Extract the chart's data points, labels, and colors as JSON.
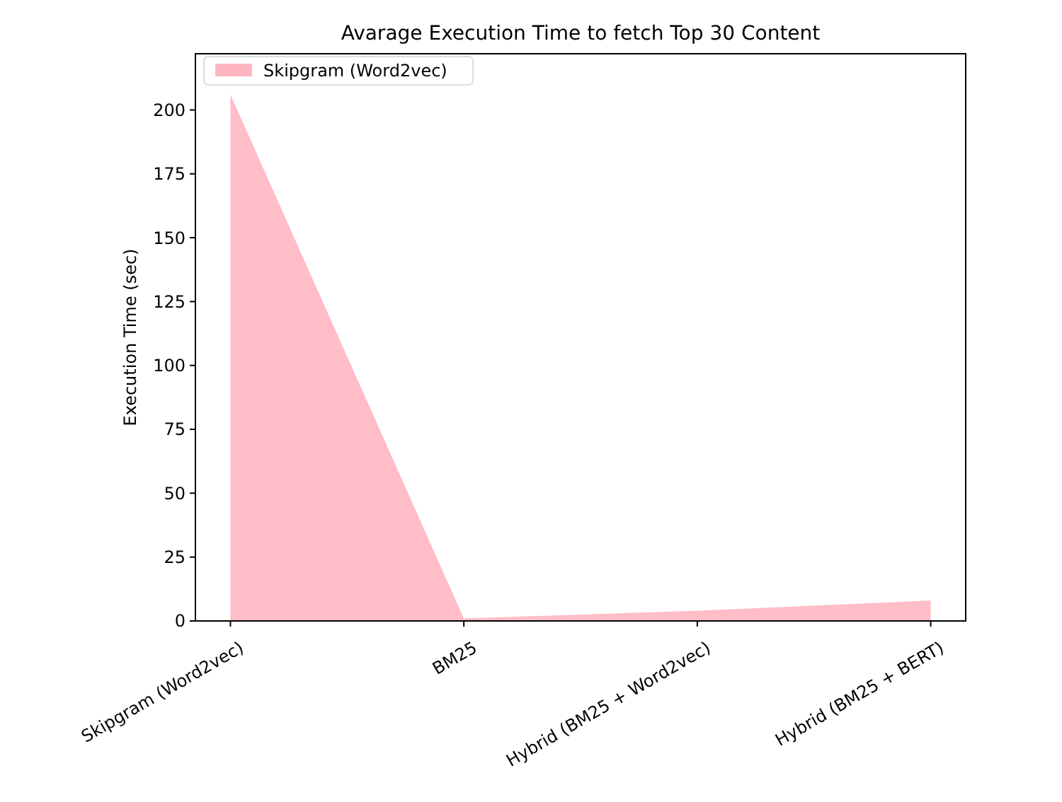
{
  "chart_data": {
    "type": "area",
    "title": "Avarage Execution Time to fetch Top 30 Content",
    "ylabel": "Execution Time (sec)",
    "categories": [
      "Skipgram (Word2vec)",
      "BM25",
      "Hybrid (BM25 + Word2vec)",
      "Hybrid (BM25 + BERT)"
    ],
    "series": [
      {
        "name": "Skipgram (Word2vec)",
        "color": "#ffb6c1",
        "values": [
          206,
          1,
          4,
          8
        ]
      }
    ],
    "ylim": [
      0,
      222
    ],
    "yticks": [
      0,
      25,
      50,
      75,
      100,
      125,
      150,
      175,
      200
    ],
    "grid": false,
    "legend": "top left"
  }
}
